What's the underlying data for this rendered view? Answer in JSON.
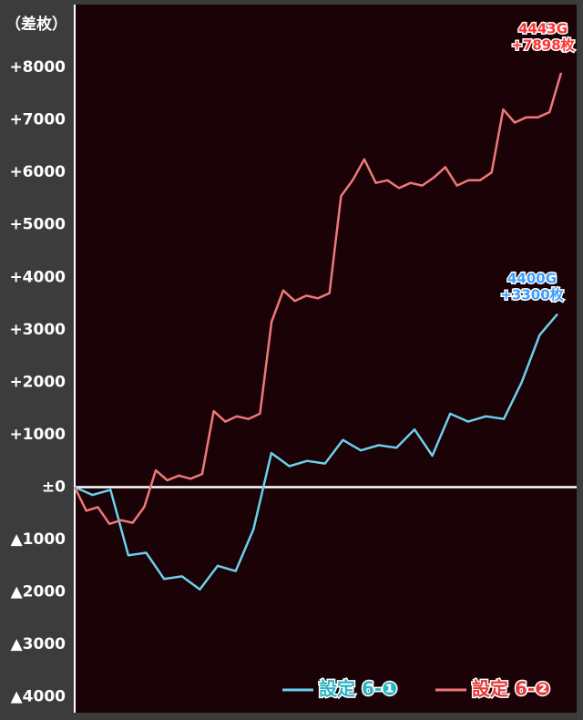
{
  "chart_data": {
    "type": "line",
    "y_axis_label": "（差枚）",
    "ylim": [
      -4300,
      9200
    ],
    "yticks": [
      {
        "value": 8000,
        "label": "+8000"
      },
      {
        "value": 7000,
        "label": "+7000"
      },
      {
        "value": 6000,
        "label": "+6000"
      },
      {
        "value": 5000,
        "label": "+5000"
      },
      {
        "value": 4000,
        "label": "+4000"
      },
      {
        "value": 3000,
        "label": "+3000"
      },
      {
        "value": 2000,
        "label": "+2000"
      },
      {
        "value": 1000,
        "label": "+1000"
      },
      {
        "value": 0,
        "label": "±0"
      },
      {
        "value": -1000,
        "label": "▲1000"
      },
      {
        "value": -2000,
        "label": "▲2000"
      },
      {
        "value": -3000,
        "label": "▲3000"
      },
      {
        "value": -4000,
        "label": "▲4000"
      }
    ],
    "series": [
      {
        "name": "設定 6-❶",
        "color": "#6cd0ec",
        "values": [
          0,
          -150,
          -50,
          -1300,
          -1250,
          -1750,
          -1700,
          -1950,
          -1500,
          -1600,
          -800,
          650,
          400,
          500,
          450,
          900,
          700,
          800,
          750,
          1100,
          600,
          1400,
          1250,
          1350,
          1300,
          2000,
          2900,
          3300
        ]
      },
      {
        "name": "設定 6-❷",
        "color": "#f07878",
        "values": [
          0,
          -450,
          -380,
          -700,
          -630,
          -680,
          -380,
          320,
          130,
          220,
          160,
          250,
          1450,
          1250,
          1350,
          1300,
          1400,
          3150,
          3750,
          3550,
          3650,
          3600,
          3700,
          5550,
          5850,
          6250,
          5800,
          5850,
          5700,
          5800,
          5750,
          5900,
          6100,
          5750,
          5850,
          5850,
          6000,
          7200,
          6950,
          7050,
          7050,
          7150,
          7898
        ]
      }
    ],
    "annotations": [
      {
        "lines": [
          "4443G",
          "+7898枚"
        ],
        "color": "#ff3030"
      },
      {
        "lines": [
          "4400G",
          "+3300枚"
        ],
        "color": "#3a9cff"
      }
    ]
  }
}
